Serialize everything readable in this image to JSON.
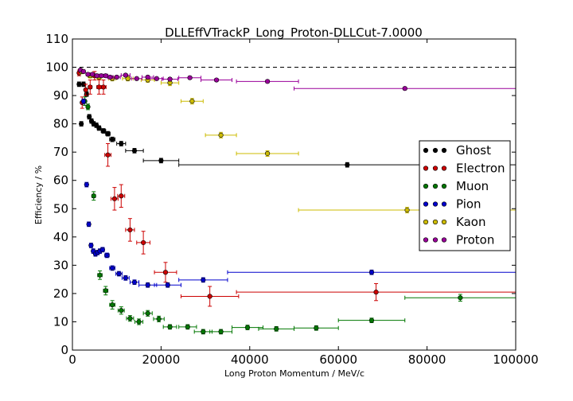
{
  "chart_data": {
    "type": "scatter",
    "title": "DLLEffVTrackP_Long_Proton-DLLCut-7.0000",
    "xlabel": "Long Proton Momentum / MeV/c",
    "ylabel": "Efficiency / %",
    "xlim": [
      0,
      100000
    ],
    "ylim": [
      0,
      110
    ],
    "x_ticks": [
      "0",
      "20000",
      "40000",
      "60000",
      "80000",
      "100000"
    ],
    "y_ticks": [
      "0",
      "10",
      "20",
      "30",
      "40",
      "50",
      "60",
      "70",
      "80",
      "90",
      "100",
      "110"
    ],
    "reference_line": 100,
    "legend_position": "center-right",
    "series": [
      {
        "name": "Ghost",
        "color": "#000000",
        "points": [
          [
            1500,
            94,
            300,
            0.8
          ],
          [
            2000,
            80,
            300,
            0.8
          ],
          [
            2500,
            94,
            300,
            0.8
          ],
          [
            3200,
            90.5,
            350,
            0.8
          ],
          [
            3800,
            82.5,
            350,
            0.8
          ],
          [
            4300,
            81,
            350,
            0.8
          ],
          [
            4800,
            80,
            350,
            0.8
          ],
          [
            5400,
            79.5,
            350,
            0.8
          ],
          [
            6000,
            78.5,
            400,
            0.8
          ],
          [
            7000,
            77.5,
            500,
            0.8
          ],
          [
            8000,
            76.5,
            500,
            0.8
          ],
          [
            9000,
            74.5,
            600,
            0.8
          ],
          [
            11000,
            73,
            1000,
            0.8
          ],
          [
            14000,
            70.5,
            2000,
            0.8
          ],
          [
            20000,
            67,
            4000,
            0.8
          ],
          [
            62000,
            65.5,
            38000,
            0.8
          ]
        ]
      },
      {
        "name": "Electron",
        "color": "#cc0000",
        "points": [
          [
            1500,
            98,
            300,
            1
          ],
          [
            2200,
            87.5,
            300,
            2
          ],
          [
            3000,
            92,
            300,
            2
          ],
          [
            4000,
            93,
            400,
            2.5
          ],
          [
            5000,
            97,
            400,
            1.5
          ],
          [
            6000,
            93,
            500,
            2.5
          ],
          [
            7000,
            93,
            600,
            2.5
          ],
          [
            8000,
            69,
            700,
            4
          ],
          [
            9500,
            53.5,
            800,
            4
          ],
          [
            11000,
            54.5,
            800,
            4
          ],
          [
            13000,
            42.5,
            1000,
            4
          ],
          [
            16000,
            38,
            1500,
            4
          ],
          [
            21000,
            27.5,
            2500,
            3.5
          ],
          [
            31000,
            19,
            6500,
            3.5
          ],
          [
            68500,
            20.5,
            31500,
            3
          ]
        ]
      },
      {
        "name": "Muon",
        "color": "#007700",
        "points": [
          [
            2800,
            88,
            300,
            1.5
          ],
          [
            3500,
            86,
            300,
            1
          ],
          [
            4800,
            54.5,
            400,
            1.5
          ],
          [
            6200,
            26.5,
            500,
            1.5
          ],
          [
            7500,
            21,
            500,
            1.5
          ],
          [
            9000,
            16,
            600,
            1.5
          ],
          [
            11000,
            14,
            700,
            1.3
          ],
          [
            13000,
            11.2,
            800,
            1
          ],
          [
            15000,
            10,
            900,
            1
          ],
          [
            17000,
            13,
            1000,
            1
          ],
          [
            19500,
            11,
            1200,
            1
          ],
          [
            22000,
            8.2,
            1500,
            0.8
          ],
          [
            26000,
            8.2,
            2000,
            0.8
          ],
          [
            29500,
            6.5,
            2000,
            0.8
          ],
          [
            33500,
            6.5,
            2500,
            0.8
          ],
          [
            39500,
            8,
            3500,
            0.8
          ],
          [
            46000,
            7.5,
            4000,
            0.8
          ],
          [
            55000,
            7.8,
            5000,
            0.8
          ],
          [
            67500,
            10.5,
            7500,
            0.8
          ],
          [
            87500,
            18.5,
            12500,
            1.2
          ]
        ]
      },
      {
        "name": "Pion",
        "color": "#0000cc",
        "points": [
          [
            2500,
            88,
            300,
            0.8
          ],
          [
            3200,
            58.5,
            300,
            0.8
          ],
          [
            3700,
            44.5,
            300,
            0.8
          ],
          [
            4200,
            37,
            300,
            0.8
          ],
          [
            4700,
            35,
            300,
            0.8
          ],
          [
            5200,
            34,
            300,
            0.8
          ],
          [
            5700,
            34.5,
            300,
            0.8
          ],
          [
            6200,
            35,
            300,
            0.8
          ],
          [
            6800,
            35.5,
            400,
            0.8
          ],
          [
            7800,
            33.5,
            500,
            0.8
          ],
          [
            9000,
            29,
            600,
            0.8
          ],
          [
            10500,
            27,
            700,
            0.8
          ],
          [
            12000,
            25.5,
            800,
            0.8
          ],
          [
            14000,
            24,
            1000,
            0.8
          ],
          [
            17000,
            23,
            2000,
            0.8
          ],
          [
            21500,
            23,
            3000,
            0.8
          ],
          [
            29500,
            24.8,
            5500,
            0.8
          ],
          [
            67500,
            27.5,
            32500,
            0.8
          ]
        ]
      },
      {
        "name": "Kaon",
        "color": "#ccbb00",
        "points": [
          [
            2000,
            98.5,
            300,
            0.8
          ],
          [
            4000,
            97,
            500,
            0.8
          ],
          [
            6000,
            96.5,
            600,
            0.8
          ],
          [
            9000,
            96,
            800,
            0.8
          ],
          [
            12500,
            96,
            1200,
            0.8
          ],
          [
            17000,
            95.5,
            1500,
            0.8
          ],
          [
            22000,
            94.5,
            2000,
            1
          ],
          [
            27000,
            88,
            2500,
            1
          ],
          [
            33500,
            76,
            3500,
            1
          ],
          [
            44000,
            69.5,
            7000,
            1
          ],
          [
            75500,
            49.5,
            24500,
            1
          ]
        ]
      },
      {
        "name": "Proton",
        "color": "#990099",
        "points": [
          [
            1800,
            99,
            300,
            0.5
          ],
          [
            2500,
            98.5,
            300,
            0.5
          ],
          [
            3500,
            97.5,
            400,
            0.5
          ],
          [
            4500,
            97.5,
            400,
            0.5
          ],
          [
            5500,
            97,
            400,
            0.5
          ],
          [
            6500,
            97,
            500,
            0.5
          ],
          [
            7500,
            97,
            500,
            0.5
          ],
          [
            8500,
            96.5,
            600,
            0.5
          ],
          [
            10000,
            96.5,
            800,
            0.5
          ],
          [
            12000,
            97.2,
            1000,
            0.5
          ],
          [
            14500,
            96,
            1200,
            0.5
          ],
          [
            17000,
            96.5,
            1300,
            0.5
          ],
          [
            19000,
            96,
            1500,
            0.5
          ],
          [
            22000,
            95.8,
            1800,
            0.5
          ],
          [
            26500,
            96.3,
            2500,
            0.5
          ],
          [
            32500,
            95.5,
            3500,
            0.5
          ],
          [
            44000,
            95,
            7000,
            0.5
          ],
          [
            75000,
            92.5,
            25000,
            0.5
          ]
        ]
      }
    ]
  }
}
